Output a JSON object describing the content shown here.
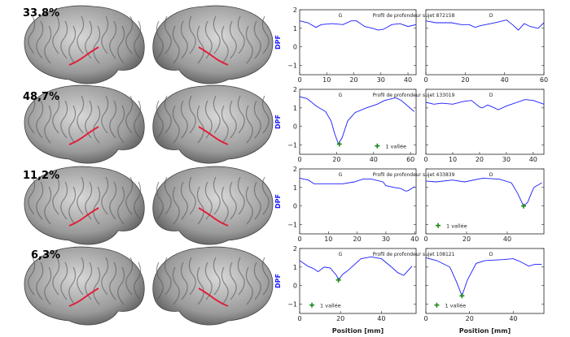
{
  "percentages": [
    "33.8%",
    "48,7%",
    "11,2%",
    "6,3%"
  ],
  "colors": {
    "curve": "#1a1aff",
    "marker": "#1a8a1a",
    "ylabel": "#1a1aff",
    "sulcus": "#e0203a"
  },
  "chart_data": {
    "type": "line",
    "ylabel": "DPF",
    "xlabel": "Position [mm]",
    "ylim": [
      -1.5,
      2
    ],
    "yticks": [
      -1,
      0,
      1,
      2
    ],
    "legend_text": "1 vallée",
    "rows": [
      {
        "title": "Profil de profondeur sujet 872158",
        "panels": [
          {
            "label": "G",
            "xlim": [
              0,
              43
            ],
            "xtick_step": 10,
            "xtick_max": 40,
            "x": [
              0,
              3,
              6,
              8,
              12,
              16,
              19,
              21,
              24,
              27,
              29,
              31,
              34,
              37,
              40,
              43
            ],
            "y": [
              1.4,
              1.3,
              1.05,
              1.2,
              1.25,
              1.2,
              1.4,
              1.4,
              1.1,
              1.0,
              0.9,
              0.95,
              1.2,
              1.25,
              1.1,
              1.2
            ],
            "valley": null,
            "legend": null
          },
          {
            "label": "D",
            "xlim": [
              0,
              60
            ],
            "xtick_step": 20,
            "xtick_max": 60,
            "x": [
              0,
              5,
              13,
              18,
              22,
              25,
              28,
              33,
              37,
              41,
              44,
              47,
              50,
              53,
              57,
              60
            ],
            "y": [
              1.4,
              1.3,
              1.3,
              1.2,
              1.2,
              1.05,
              1.15,
              1.25,
              1.35,
              1.45,
              1.2,
              0.9,
              1.25,
              1.1,
              1.0,
              1.3
            ],
            "valley": null,
            "legend": null
          }
        ]
      },
      {
        "title": "Profil de profondeur sujet 133019",
        "panels": [
          {
            "label": "G",
            "xlim": [
              0,
              63
            ],
            "xtick_step": 20,
            "xtick_max": 60,
            "x": [
              0,
              4,
              9,
              14,
              17,
              19,
              21,
              23,
              26,
              30,
              36,
              42,
              46,
              52,
              55,
              62
            ],
            "y": [
              1.6,
              1.5,
              1.1,
              0.8,
              0.3,
              -0.4,
              -0.95,
              -0.6,
              0.3,
              0.75,
              1.0,
              1.2,
              1.4,
              1.55,
              1.4,
              0.8
            ],
            "valley": [
              21.5,
              -0.95
            ],
            "legend": [
              42,
              -1.05
            ]
          },
          {
            "label": "D",
            "xlim": [
              0,
              44
            ],
            "xtick_step": 10,
            "xtick_max": 40,
            "x": [
              0,
              3,
              6,
              10,
              14,
              17,
              20,
              21,
              23,
              24,
              27,
              30,
              34,
              37,
              40,
              44
            ],
            "y": [
              1.3,
              1.2,
              1.25,
              1.2,
              1.35,
              1.4,
              1.05,
              1.0,
              1.15,
              1.1,
              0.9,
              1.1,
              1.3,
              1.45,
              1.4,
              1.2
            ],
            "valley": null,
            "legend": null
          }
        ]
      },
      {
        "title": "Profil de profondeur sujet 433839",
        "panels": [
          {
            "label": "G",
            "xlim": [
              0,
              40.5
            ],
            "xtick_step": 10,
            "xtick_max": 40,
            "x": [
              0,
              3,
              5,
              10,
              15,
              19,
              22,
              25,
              29,
              30,
              33,
              35,
              37,
              38,
              40
            ],
            "y": [
              1.5,
              1.4,
              1.2,
              1.2,
              1.2,
              1.3,
              1.45,
              1.45,
              1.3,
              1.1,
              1.0,
              0.95,
              0.8,
              0.85,
              1.05
            ],
            "valley": null,
            "legend": null
          },
          {
            "label": "D",
            "xlim": [
              0,
              58
            ],
            "xtick_step": 20,
            "xtick_max": 40,
            "x": [
              0,
              5,
              13,
              19,
              28,
              36,
              42,
              45,
              48,
              50,
              53,
              57
            ],
            "y": [
              1.35,
              1.3,
              1.4,
              1.3,
              1.5,
              1.45,
              1.25,
              0.7,
              0.0,
              0.2,
              1.0,
              1.25
            ],
            "valley": [
              48,
              0
            ],
            "legend": [
              6,
              -1.05
            ]
          }
        ]
      },
      {
        "title": "Profil de profondeur sujet 108121",
        "panels": [
          {
            "label": "G",
            "xlim": [
              0,
              57
            ],
            "xtick_step": 20,
            "xtick_max": 40,
            "x": [
              0,
              4,
              7,
              9,
              12,
              15,
              18,
              19,
              21,
              24,
              30,
              35,
              40,
              45,
              48,
              51,
              55
            ],
            "y": [
              1.35,
              1.05,
              0.9,
              0.75,
              1.0,
              0.95,
              0.55,
              0.3,
              0.6,
              0.85,
              1.45,
              1.55,
              1.45,
              1.0,
              0.7,
              0.55,
              1.05
            ],
            "valley": [
              19,
              0.3
            ],
            "legend": [
              6,
              -1.05
            ]
          },
          {
            "label": "D",
            "xlim": [
              0,
              54
            ],
            "xtick_step": 20,
            "xtick_max": 40,
            "x": [
              0,
              5,
              11,
              14,
              16.5,
              19,
              23,
              27,
              35,
              40,
              43,
              47,
              50,
              53
            ],
            "y": [
              1.5,
              1.35,
              1.0,
              0.2,
              -0.55,
              0.3,
              1.2,
              1.35,
              1.4,
              1.45,
              1.3,
              1.05,
              1.15,
              1.15
            ],
            "valley": [
              16.5,
              -0.55
            ],
            "legend": [
              5,
              -1.05
            ]
          }
        ]
      }
    ]
  }
}
